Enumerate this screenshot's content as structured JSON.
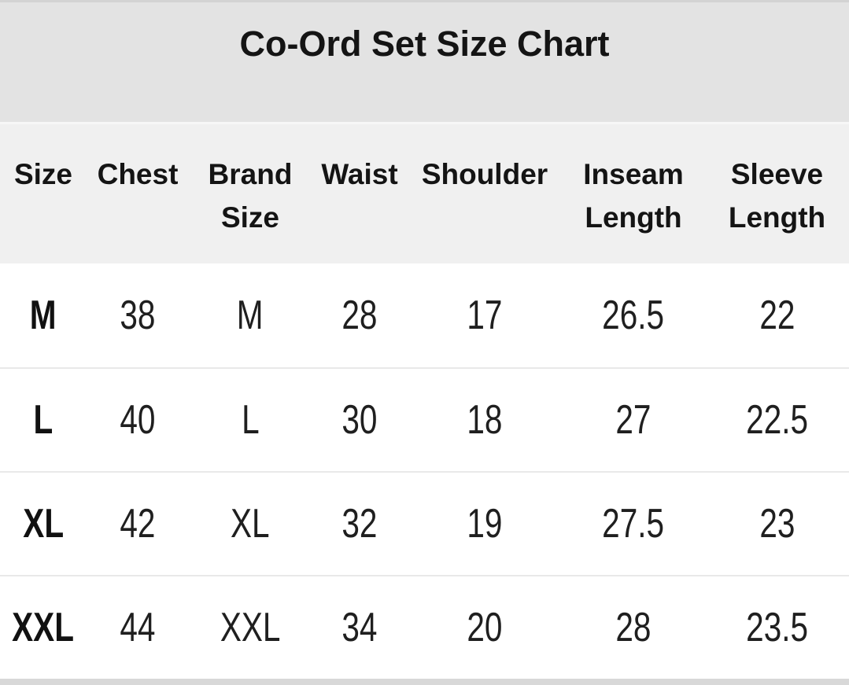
{
  "header": {
    "title": "Co-Ord Set Size Chart"
  },
  "colors": {
    "title_band_bg": "#e3e3e3",
    "title_band_top_edge": "#d3d3d3",
    "header_row_bg": "#f0f0f0",
    "row_bg": "#ffffff",
    "row_separator": "#e9e9e9",
    "bottom_strip": "#d8d8d8",
    "text": "#1a1a1a"
  },
  "chart_data": {
    "type": "table",
    "title": "Co-Ord Set Size Chart",
    "columns": [
      "Size",
      "Chest",
      "Brand Size",
      "Waist",
      "Shoulder",
      "Inseam Length",
      "Sleeve Length"
    ],
    "rows": [
      [
        "M",
        "38",
        "M",
        "28",
        "17",
        "26.5",
        "22"
      ],
      [
        "L",
        "40",
        "L",
        "30",
        "18",
        "27",
        "22.5"
      ],
      [
        "XL",
        "42",
        "XL",
        "32",
        "19",
        "27.5",
        "23"
      ],
      [
        "XXL",
        "44",
        "XXL",
        "34",
        "20",
        "28",
        "23.5"
      ]
    ]
  }
}
